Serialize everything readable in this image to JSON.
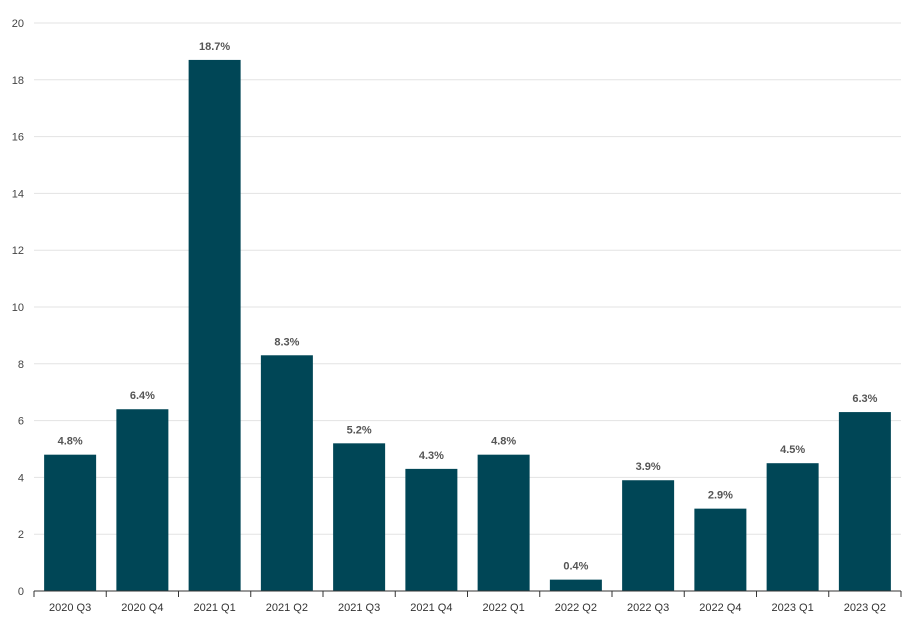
{
  "chart_data": {
    "type": "bar",
    "categories": [
      "2020 Q3",
      "2020 Q4",
      "2021 Q1",
      "2021 Q2",
      "2021 Q3",
      "2021 Q4",
      "2022 Q1",
      "2022 Q2",
      "2022 Q3",
      "2022 Q4",
      "2023 Q1",
      "2023 Q2"
    ],
    "values": [
      4.8,
      6.4,
      18.7,
      8.3,
      5.2,
      4.3,
      4.8,
      0.4,
      3.9,
      2.9,
      4.5,
      6.3
    ],
    "data_labels": [
      "4.8%",
      "6.4%",
      "18.7%",
      "8.3%",
      "5.2%",
      "4.3%",
      "4.8%",
      "0.4%",
      "3.9%",
      "2.9%",
      "4.5%",
      "6.3%"
    ],
    "y_ticks": [
      "0",
      "2",
      "4",
      "6",
      "8",
      "10",
      "12",
      "14",
      "16",
      "18",
      "20"
    ],
    "ylim": [
      0,
      20
    ],
    "title": "",
    "xlabel": "",
    "ylabel": "",
    "grid": true,
    "legend": "none",
    "bar_color": "#004656"
  }
}
